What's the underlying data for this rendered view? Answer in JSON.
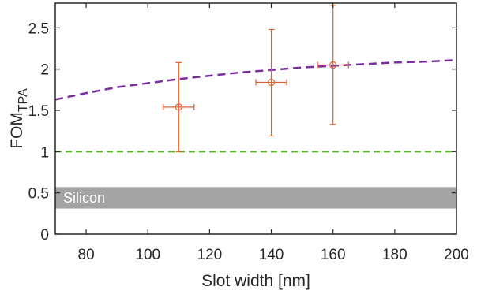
{
  "chart_data": {
    "type": "scatter",
    "xlabel": "Slot width [nm]",
    "ylabel_main": "FOM",
    "ylabel_sub": "TPA",
    "xlim": [
      70,
      200
    ],
    "ylim": [
      0,
      2.8
    ],
    "xticks": [
      80,
      100,
      120,
      140,
      160,
      180,
      200
    ],
    "yticks": [
      0,
      0.5,
      1,
      1.5,
      2,
      2.5
    ],
    "ytick_labels": [
      "0",
      "0.5",
      "1",
      "1.5",
      "2",
      "2.5"
    ],
    "grid": false,
    "measurements": {
      "color": "#e0612c",
      "points": [
        {
          "x": 110,
          "y": 1.54,
          "xerr": 5,
          "ylow": 1.0,
          "yhigh": 2.08
        },
        {
          "x": 140,
          "y": 1.84,
          "xerr": 5,
          "ylow": 1.19,
          "yhigh": 2.48
        },
        {
          "x": 160,
          "y": 2.05,
          "xerr": 5,
          "ylow": 1.33,
          "yhigh": 2.77
        }
      ]
    },
    "model_curve": {
      "color": "#7b2d9e",
      "style": "dashed",
      "x": [
        70,
        80,
        90,
        100,
        110,
        120,
        130,
        140,
        150,
        160,
        170,
        180,
        190,
        200
      ],
      "y": [
        1.63,
        1.71,
        1.78,
        1.83,
        1.88,
        1.92,
        1.96,
        1.99,
        2.02,
        2.04,
        2.06,
        2.08,
        2.09,
        2.11
      ]
    },
    "reference_line": {
      "color": "#55b72b",
      "style": "dashed",
      "y": 1.0
    },
    "band": {
      "label": "Silicon",
      "color": "#a3a3a3",
      "ymin": 0.31,
      "ymax": 0.57
    }
  }
}
